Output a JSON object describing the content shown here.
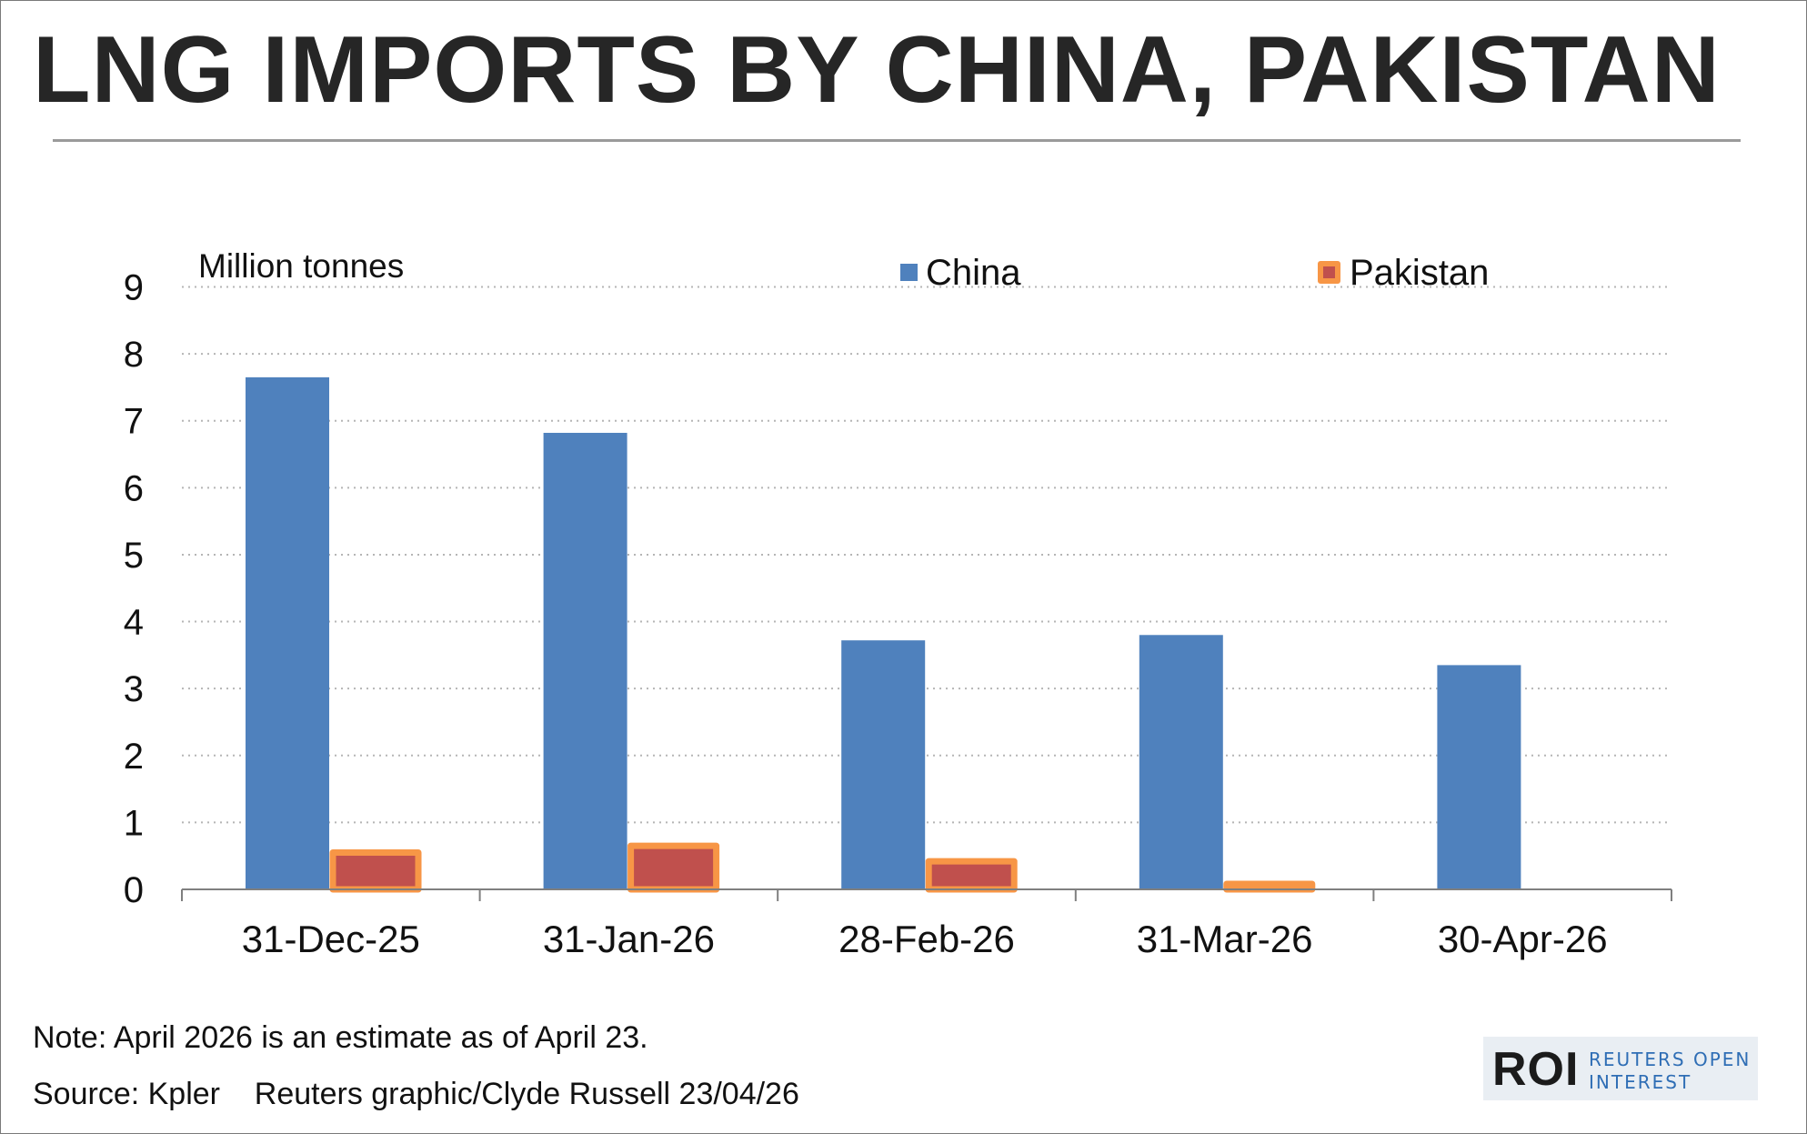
{
  "title": "LNG IMPORTS BY CHINA, PAKISTAN",
  "note": "Note: April 2026 is an estimate as of April 23.",
  "source": "Source: Kpler    Reuters graphic/Clyde Russell 23/04/26",
  "logo": {
    "mark": "ROI",
    "line1": "REUTERS OPEN",
    "line2": "INTEREST"
  },
  "colors": {
    "china": "#4F81BD",
    "pakistan_fill": "#C0504D",
    "pakistan_border": "#F79646",
    "grid": "#b5b5b5",
    "axis": "#7f7f7f",
    "title": "#262626"
  },
  "chart_data": {
    "type": "bar",
    "ylabel": "Million tonnes",
    "ylim": [
      0,
      9
    ],
    "yticks": [
      "0",
      "1",
      "2",
      "3",
      "4",
      "5",
      "6",
      "7",
      "8",
      "9"
    ],
    "categories": [
      "31-Dec-25",
      "31-Jan-26",
      "28-Feb-26",
      "31-Mar-26",
      "30-Apr-26"
    ],
    "grid": true,
    "grid_style": "dotted",
    "legend_position": "top",
    "series": [
      {
        "name": "China",
        "values": [
          7.65,
          6.82,
          3.72,
          3.8,
          3.35
        ]
      },
      {
        "name": "Pakistan",
        "values": [
          0.55,
          0.65,
          0.42,
          0.08,
          0
        ]
      }
    ]
  }
}
